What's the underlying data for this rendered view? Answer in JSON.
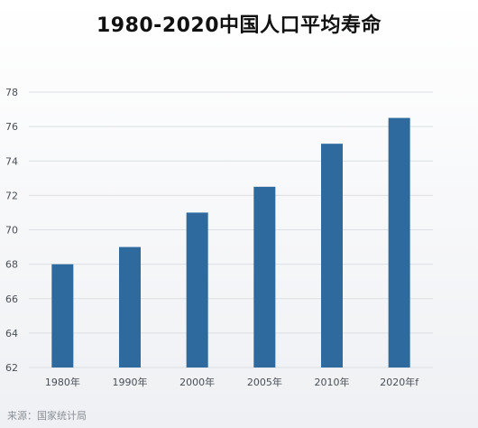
{
  "chart_data": {
    "type": "bar",
    "title": "1980-2020中国人口平均寿命",
    "categories": [
      "1980年",
      "1990年",
      "2000年",
      "2005年",
      "2010年",
      "2020年f"
    ],
    "values": [
      68.0,
      69.0,
      71.0,
      72.5,
      75.0,
      76.5
    ],
    "ylim": [
      62,
      78
    ],
    "yticks": [
      62,
      64,
      66,
      68,
      70,
      72,
      74,
      76,
      78
    ],
    "grid": true,
    "bar_color": "#2f6a9e",
    "grid_color": "#dcdfe3"
  },
  "footer": {
    "source": "来源：国家统计局"
  }
}
